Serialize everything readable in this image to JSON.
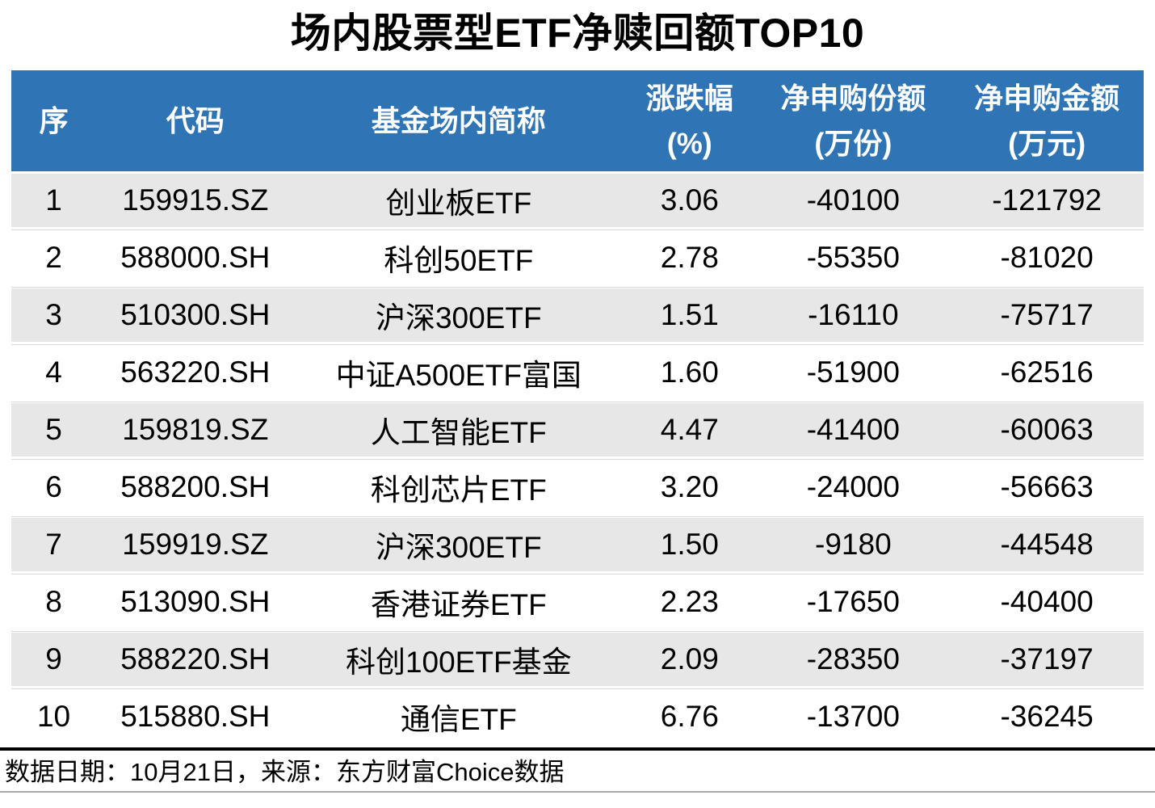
{
  "chart_data": {
    "type": "table",
    "title": "场内股票型ETF净赎回额TOP10",
    "columns": [
      {
        "label": "序",
        "sublabel": ""
      },
      {
        "label": "代码",
        "sublabel": ""
      },
      {
        "label": "基金场内简称",
        "sublabel": ""
      },
      {
        "label": "涨跌幅",
        "sublabel": "(%)"
      },
      {
        "label": "净申购份额",
        "sublabel": "(万份)"
      },
      {
        "label": "净申购金额",
        "sublabel": "(万元)"
      }
    ],
    "rows": [
      [
        "1",
        "159915.SZ",
        "创业板ETF",
        "3.06",
        "-40100",
        "-121792"
      ],
      [
        "2",
        "588000.SH",
        "科创50ETF",
        "2.78",
        "-55350",
        "-81020"
      ],
      [
        "3",
        "510300.SH",
        "沪深300ETF",
        "1.51",
        "-16110",
        "-75717"
      ],
      [
        "4",
        "563220.SH",
        "中证A500ETF富国",
        "1.60",
        "-51900",
        "-62516"
      ],
      [
        "5",
        "159819.SZ",
        "人工智能ETF",
        "4.47",
        "-41400",
        "-60063"
      ],
      [
        "6",
        "588200.SH",
        "科创芯片ETF",
        "3.20",
        "-24000",
        "-56663"
      ],
      [
        "7",
        "159919.SZ",
        "沪深300ETF",
        "1.50",
        "-9180",
        "-44548"
      ],
      [
        "8",
        "513090.SH",
        "香港证券ETF",
        "2.23",
        "-17650",
        "-40400"
      ],
      [
        "9",
        "588220.SH",
        "科创100ETF基金",
        "2.09",
        "-28350",
        "-37197"
      ],
      [
        "10",
        "515880.SH",
        "通信ETF",
        "6.76",
        "-13700",
        "-36245"
      ]
    ],
    "footer_note": "数据日期：10月21日，来源：东方财富Choice数据",
    "layout": {
      "header_rows": 1,
      "data_rows": 10,
      "grid": "alternating-row-shading"
    }
  },
  "colors": {
    "header_bg": "#2F74B5",
    "header_text": "#FFFFFF",
    "row_alt_bg": "#E7E7E7",
    "row_bg": "#FFFFFF",
    "row_separator": "#D9D9D9",
    "footer_rule": "#000000",
    "text": "#000000"
  }
}
